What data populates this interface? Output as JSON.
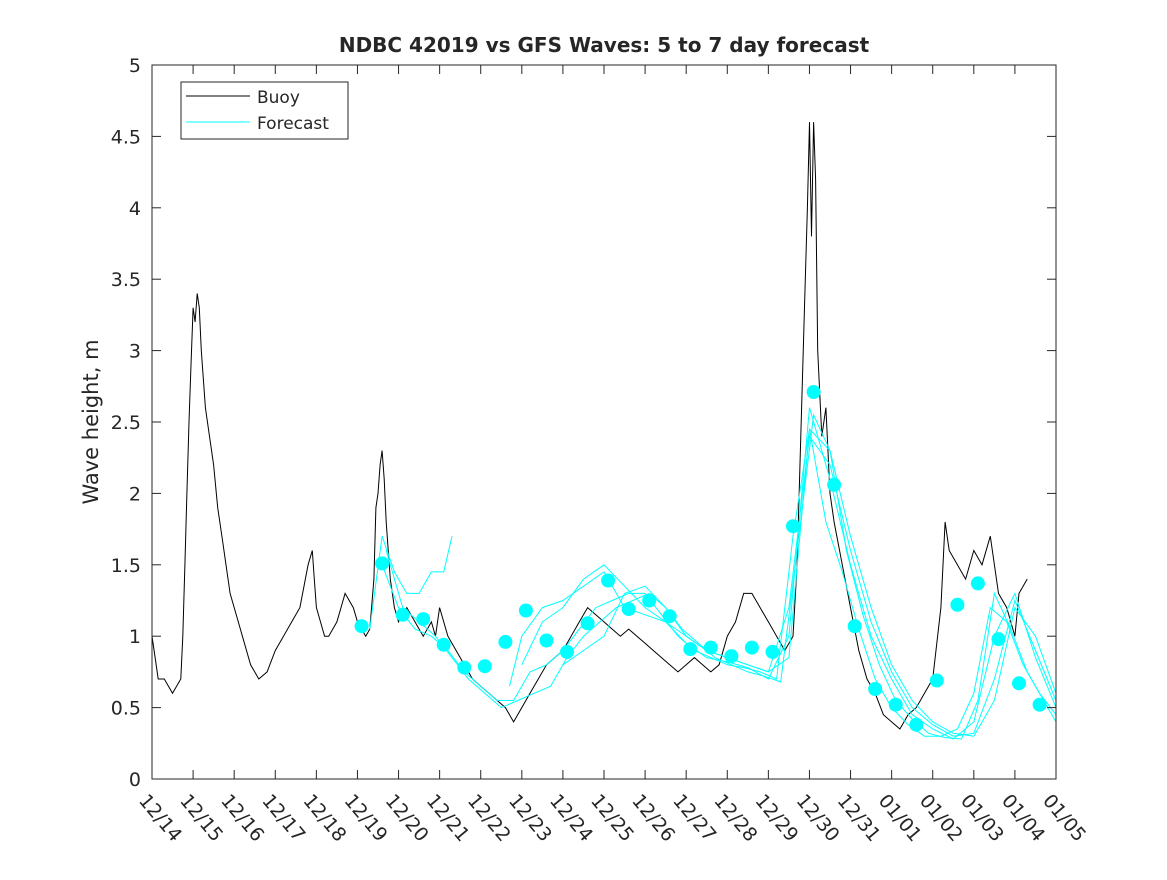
{
  "chart_data": {
    "type": "line",
    "title": "NDBC 42019 vs GFS Waves: 5 to 7 day forecast",
    "xlabel": "",
    "ylabel": "Wave height, m",
    "xlim": [
      0,
      22
    ],
    "ylim": [
      0,
      5
    ],
    "yticks": [
      0,
      0.5,
      1,
      1.5,
      2,
      2.5,
      3,
      3.5,
      4,
      4.5,
      5
    ],
    "ytick_labels": [
      "0",
      "0.5",
      "1",
      "1.5",
      "2",
      "2.5",
      "3",
      "3.5",
      "4",
      "4.5",
      "5"
    ],
    "xtick_labels": [
      "12/14",
      "12/15",
      "12/16",
      "12/17",
      "12/18",
      "12/19",
      "12/20",
      "12/21",
      "12/22",
      "12/23",
      "12/24",
      "12/25",
      "12/26",
      "12/27",
      "12/28",
      "12/29",
      "12/30",
      "12/31",
      "01/01",
      "01/02",
      "01/03",
      "01/04",
      "01/05"
    ],
    "legend": {
      "location": "top-left",
      "entries": [
        "Buoy",
        "Forecast"
      ]
    },
    "colors": {
      "buoy": "#000000",
      "forecast": "#00ffff",
      "axis": "#262626"
    },
    "buoy": {
      "name": "Buoy",
      "x": [
        0,
        0.05,
        0.15,
        0.3,
        0.5,
        0.7,
        0.75,
        0.8,
        0.85,
        0.9,
        0.95,
        1.0,
        1.05,
        1.1,
        1.15,
        1.2,
        1.3,
        1.4,
        1.5,
        1.6,
        1.7,
        1.8,
        1.9,
        2.0,
        2.1,
        2.2,
        2.3,
        2.4,
        2.5,
        2.6,
        2.8,
        3.0,
        3.2,
        3.4,
        3.6,
        3.8,
        3.9,
        3.95,
        4.0,
        4.1,
        4.2,
        4.3,
        4.5,
        4.7,
        4.9,
        5.0,
        5.1,
        5.2,
        5.3,
        5.4,
        5.45,
        5.5,
        5.55,
        5.6,
        5.65,
        5.7,
        5.8,
        5.9,
        6.0,
        6.2,
        6.4,
        6.6,
        6.8,
        6.9,
        7.0,
        7.2,
        7.4,
        7.6,
        7.8,
        8.0,
        8.2,
        8.4,
        8.6,
        8.8,
        9.0,
        9.2,
        9.4,
        9.6,
        9.8,
        10.0,
        10.2,
        10.4,
        10.6,
        10.8,
        11.0,
        11.2,
        11.4,
        11.6,
        11.8,
        12.0,
        12.2,
        12.4,
        12.6,
        12.8,
        13.0,
        13.2,
        13.4,
        13.6,
        13.8,
        14.0,
        14.2,
        14.4,
        14.6,
        14.8,
        15.0,
        15.2,
        15.4,
        15.6,
        15.7,
        15.8,
        15.9,
        15.95,
        16.0,
        16.05,
        16.1,
        16.15,
        16.2,
        16.3,
        16.4,
        16.5,
        16.6,
        16.8,
        17.0,
        17.2,
        17.4,
        17.6,
        17.8,
        18.0,
        18.2,
        18.4,
        18.6,
        18.8,
        19.0,
        19.2,
        19.3,
        19.4,
        19.6,
        19.8,
        20.0,
        20.2,
        20.4,
        20.6,
        20.8,
        21.0,
        21.1,
        21.3
      ],
      "y": [
        1.0,
        0.9,
        0.7,
        0.7,
        0.6,
        0.7,
        1.0,
        1.5,
        2.0,
        2.5,
        2.9,
        3.3,
        3.2,
        3.4,
        3.3,
        3.0,
        2.6,
        2.4,
        2.2,
        1.9,
        1.7,
        1.5,
        1.3,
        1.2,
        1.1,
        1.0,
        0.9,
        0.8,
        0.75,
        0.7,
        0.75,
        0.9,
        1.0,
        1.1,
        1.2,
        1.5,
        1.6,
        1.4,
        1.2,
        1.1,
        1.0,
        1.0,
        1.1,
        1.3,
        1.2,
        1.1,
        1.05,
        1.0,
        1.05,
        1.4,
        1.9,
        2.0,
        2.2,
        2.3,
        2.1,
        1.8,
        1.4,
        1.2,
        1.1,
        1.2,
        1.1,
        1.0,
        1.1,
        1.0,
        1.2,
        1.0,
        0.9,
        0.8,
        0.7,
        0.65,
        0.6,
        0.55,
        0.5,
        0.4,
        0.5,
        0.6,
        0.7,
        0.8,
        0.85,
        0.9,
        1.0,
        1.1,
        1.2,
        1.15,
        1.1,
        1.05,
        1.0,
        1.05,
        1.0,
        0.95,
        0.9,
        0.85,
        0.8,
        0.75,
        0.8,
        0.85,
        0.8,
        0.75,
        0.8,
        1.0,
        1.1,
        1.3,
        1.3,
        1.2,
        1.1,
        1.0,
        0.9,
        1.0,
        1.5,
        2.5,
        3.5,
        4.0,
        4.6,
        3.8,
        4.6,
        4.2,
        3.0,
        2.4,
        2.6,
        2.0,
        1.8,
        1.5,
        1.2,
        0.9,
        0.7,
        0.6,
        0.45,
        0.4,
        0.35,
        0.45,
        0.5,
        0.6,
        0.7,
        1.2,
        1.8,
        1.6,
        1.5,
        1.4,
        1.6,
        1.5,
        1.7,
        1.3,
        1.2,
        1.0,
        1.3,
        1.4
      ]
    },
    "forecast_runs": [
      {
        "name": "Forecast",
        "x": [
          5.3,
          5.6,
          5.9,
          6.2,
          6.5,
          6.8,
          7.1,
          7.3
        ],
        "y": [
          1.05,
          1.7,
          1.45,
          1.3,
          1.3,
          1.45,
          1.45,
          1.7
        ]
      },
      {
        "name": "Forecast",
        "x": [
          5.6,
          6.0,
          6.4,
          6.8,
          7.2,
          7.6,
          8.0,
          8.4,
          8.8,
          9.2,
          9.6,
          10.0,
          10.4,
          10.8,
          11.2,
          11.6,
          12.0,
          12.4,
          12.8,
          13.2,
          13.6,
          14.0,
          14.4,
          14.8,
          15.2,
          15.6,
          16.0,
          16.4,
          16.8,
          17.2,
          17.6,
          18.0,
          18.4,
          18.8,
          19.2,
          19.6,
          20.0,
          20.4,
          20.8,
          21.2,
          21.6,
          22.0
        ],
        "y": [
          1.5,
          1.2,
          1.05,
          1.0,
          0.9,
          0.75,
          0.65,
          0.55,
          0.55,
          0.75,
          0.8,
          0.9,
          1.05,
          1.2,
          1.25,
          1.3,
          1.3,
          1.15,
          1.0,
          0.9,
          0.85,
          0.8,
          0.78,
          0.75,
          0.7,
          1.7,
          2.45,
          1.8,
          1.45,
          1.05,
          0.7,
          0.5,
          0.38,
          0.3,
          0.3,
          0.35,
          0.6,
          1.2,
          1.1,
          0.8,
          0.6,
          0.45
        ]
      },
      {
        "name": "Forecast",
        "x": [
          5.7,
          6.1,
          6.5,
          6.9,
          7.3,
          7.7,
          8.1,
          8.5,
          8.9,
          9.3,
          9.7,
          10.1,
          10.5,
          10.9,
          11.3,
          11.7,
          12.1,
          12.5,
          12.9,
          13.3,
          13.7,
          14.1,
          14.5,
          14.9,
          15.3,
          15.7,
          16.1,
          16.5,
          16.9,
          17.3,
          17.7,
          18.1,
          18.5,
          18.9,
          19.3,
          19.7,
          20.1,
          20.5,
          20.9,
          21.3,
          21.7,
          22.0
        ],
        "y": [
          1.6,
          1.2,
          1.1,
          1.0,
          0.85,
          0.7,
          0.6,
          0.5,
          0.55,
          0.6,
          0.65,
          0.85,
          1.0,
          1.1,
          1.2,
          1.25,
          1.3,
          1.2,
          1.05,
          0.95,
          0.85,
          0.8,
          0.75,
          0.72,
          0.68,
          1.6,
          2.55,
          2.3,
          1.6,
          1.15,
          0.8,
          0.55,
          0.42,
          0.32,
          0.29,
          0.28,
          0.55,
          1.3,
          1.05,
          0.75,
          0.55,
          0.4
        ]
      },
      {
        "name": "Forecast",
        "x": [
          8.7,
          9.0,
          9.5,
          10.0,
          10.5,
          11.0,
          11.5,
          12.0,
          12.5,
          13.0,
          13.5,
          14.0,
          14.5,
          15.0,
          15.5,
          16.0,
          16.5,
          17.0,
          17.5,
          18.0,
          18.5,
          19.0,
          19.5,
          20.0,
          20.5,
          21.0,
          21.5,
          22.0
        ],
        "y": [
          0.65,
          1.0,
          1.2,
          1.25,
          1.35,
          1.45,
          1.2,
          1.15,
          1.1,
          1.0,
          0.9,
          0.85,
          0.8,
          0.75,
          1.2,
          2.4,
          2.2,
          1.6,
          1.1,
          0.75,
          0.5,
          0.38,
          0.3,
          0.32,
          0.7,
          1.25,
          0.9,
          0.55
        ]
      },
      {
        "name": "Forecast",
        "x": [
          9.0,
          9.5,
          10.0,
          10.5,
          11.0,
          11.5,
          12.0,
          12.5,
          13.0,
          13.5,
          14.0,
          14.5,
          15.0,
          15.5,
          16.0,
          16.5,
          17.0,
          17.5,
          18.0,
          18.5,
          19.0,
          19.5,
          20.0,
          20.5,
          21.0,
          21.5,
          22.0
        ],
        "y": [
          0.8,
          1.1,
          1.2,
          1.4,
          1.5,
          1.35,
          1.2,
          1.1,
          0.95,
          0.85,
          0.82,
          0.78,
          0.7,
          1.0,
          2.6,
          2.1,
          1.5,
          1.0,
          0.7,
          0.45,
          0.35,
          0.28,
          0.4,
          1.0,
          1.3,
          0.85,
          0.5
        ]
      },
      {
        "name": "Forecast",
        "x": [
          10.0,
          10.5,
          11.0,
          11.5,
          12.0,
          12.5,
          13.0,
          13.5,
          14.0,
          14.5,
          15.0,
          15.5,
          16.0,
          16.5,
          17.0,
          17.5,
          18.0,
          18.5,
          19.0,
          19.5,
          20.0,
          20.5,
          21.0,
          21.5,
          22.0
        ],
        "y": [
          0.8,
          0.9,
          1.0,
          1.3,
          1.35,
          1.2,
          1.0,
          0.9,
          0.85,
          0.8,
          0.75,
          0.85,
          2.45,
          2.3,
          1.7,
          1.2,
          0.8,
          0.55,
          0.4,
          0.32,
          0.3,
          0.55,
          1.2,
          1.0,
          0.6
        ]
      }
    ],
    "forecast_markers": {
      "x": [
        5.1,
        5.6,
        6.1,
        6.6,
        7.1,
        7.6,
        8.1,
        8.6,
        9.1,
        9.6,
        10.1,
        10.6,
        11.1,
        11.6,
        12.1,
        12.6,
        13.1,
        13.6,
        14.1,
        14.6,
        15.1,
        15.6,
        16.1,
        16.6,
        17.1,
        17.6,
        18.1,
        18.6,
        19.1,
        19.6,
        20.1,
        20.6,
        21.1,
        21.6
      ],
      "y": [
        1.07,
        1.51,
        1.15,
        1.12,
        0.94,
        0.78,
        0.79,
        0.96,
        1.18,
        0.97,
        0.89,
        1.09,
        1.39,
        1.19,
        1.25,
        1.14,
        0.91,
        0.92,
        0.86,
        0.92,
        0.89,
        1.77,
        2.71,
        2.06,
        1.07,
        0.63,
        0.52,
        0.38,
        0.69,
        1.22,
        1.37,
        0.98,
        0.67,
        0.52
      ]
    }
  }
}
